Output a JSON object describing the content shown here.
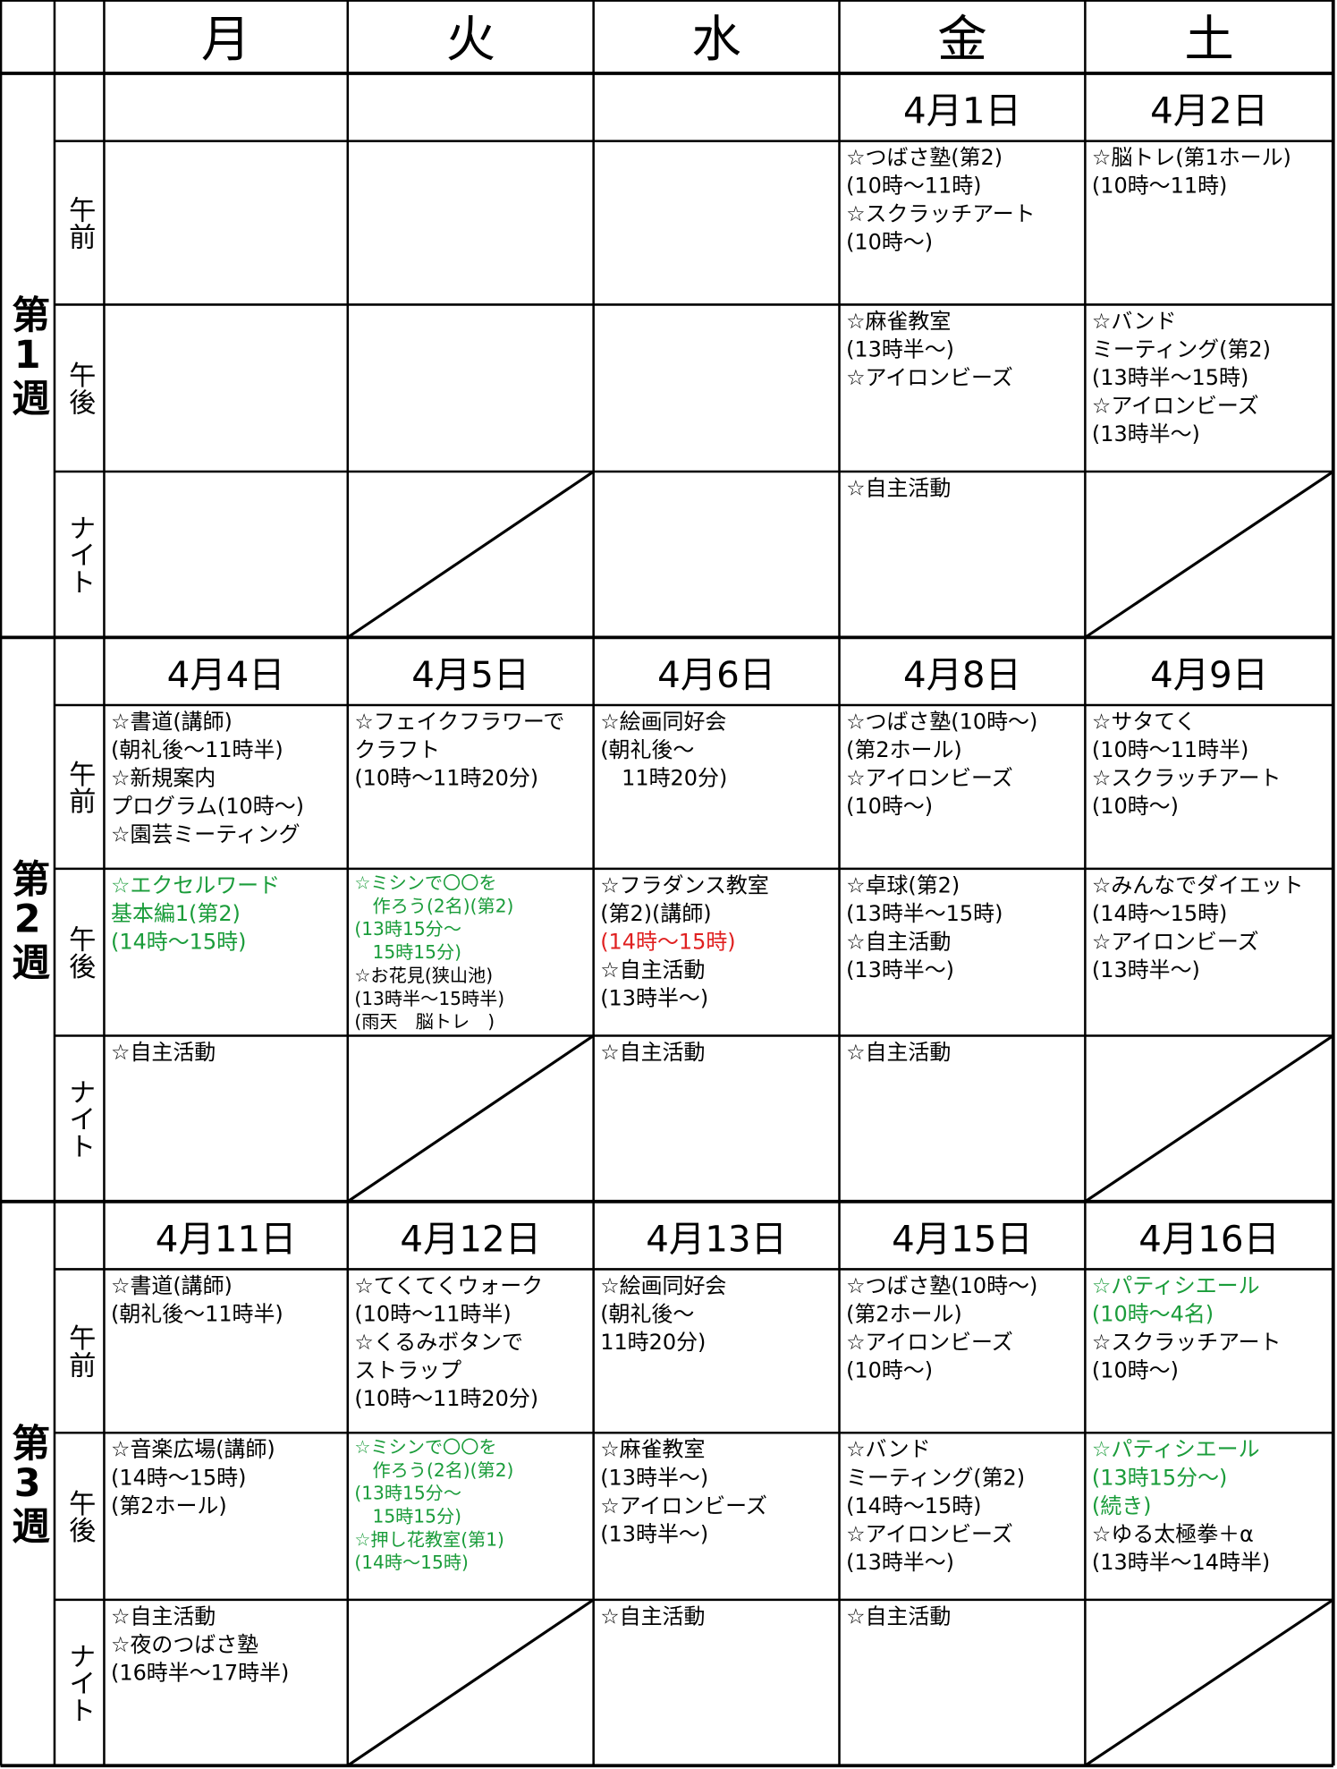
{
  "header": {
    "days": [
      "月",
      "火",
      "水",
      "金",
      "土"
    ]
  },
  "slots": [
    "午前",
    "午後",
    "ナイト"
  ],
  "weeks": [
    {
      "label": "第1週",
      "dates": [
        null,
        null,
        null,
        "4月1日",
        "4月2日"
      ],
      "rows": [
        [
          [],
          [],
          [],
          [
            "☆つばさ塾(第2)",
            "(10時～11時)",
            "☆スクラッチアート",
            "(10時～)"
          ],
          [
            "☆脳トレ(第1ホール)",
            "(10時～11時)"
          ]
        ],
        [
          [],
          [],
          [],
          [
            "☆麻雀教室",
            "(13時半～)",
            "☆アイロンビーズ"
          ],
          [
            "☆バンド",
            "ミーティング(第2)",
            "(13時半～15時)",
            "☆アイロンビーズ",
            "(13時半～)"
          ]
        ],
        [
          [],
          [],
          [],
          [
            "☆自主活動"
          ],
          []
        ]
      ]
    },
    {
      "label": "第2週",
      "dates": [
        "4月4日",
        "4月5日",
        "4月6日",
        "4月8日",
        "4月9日"
      ],
      "rows": [
        [
          [
            "☆書道(講師)",
            "(朝礼後～11時半)",
            "☆新規案内",
            "プログラム(10時～)",
            "☆園芸ミーティング"
          ],
          [
            "☆フェイクフラワーで",
            "クラフト",
            "(10時～11時20分)"
          ],
          [
            "☆絵画同好会",
            "(朝礼後～",
            "　11時20分)"
          ],
          [
            "☆つばさ塾(10時～)",
            "(第2ホール)",
            "☆アイロンビーズ",
            "(10時～)"
          ],
          [
            "☆サタてく",
            "(10時～11時半)",
            "☆スクラッチアート",
            "(10時～)"
          ]
        ],
        [
          [
            {
              "text": "☆エクセルワード",
              "color": "#1a9c3a"
            },
            {
              "text": "基本編1(第2)",
              "color": "#1a9c3a"
            },
            {
              "text": "(14時～15時)",
              "color": "#1a9c3a"
            }
          ],
          [
            {
              "text": "☆ミシンで〇〇を",
              "color": "#1a9c3a"
            },
            {
              "text": "　作ろう(2名)(第2)",
              "color": "#1a9c3a"
            },
            {
              "text": "(13時15分～",
              "color": "#1a9c3a"
            },
            {
              "text": "　15時15分)",
              "color": "#1a9c3a"
            },
            "☆お花見(狭山池)",
            "(13時半～15時半)",
            "(雨天　脳トレ　)"
          ],
          [
            "☆フラダンス教室",
            "(第2)(講師)",
            {
              "text": "(14時～15時)",
              "color": "#e02020"
            },
            "☆自主活動",
            "(13時半～)"
          ],
          [
            "☆卓球(第2)",
            "(13時半～15時)",
            "☆自主活動",
            "(13時半～)"
          ],
          [
            "☆みんなでダイエット",
            "(14時～15時)",
            "☆アイロンビーズ",
            "(13時半～)"
          ]
        ],
        [
          [
            "☆自主活動"
          ],
          [],
          [
            "☆自主活動"
          ],
          [
            "☆自主活動"
          ],
          []
        ]
      ]
    },
    {
      "label": "第3週",
      "dates": [
        "4月11日",
        "4月12日",
        "4月13日",
        "4月15日",
        "4月16日"
      ],
      "rows": [
        [
          [
            "☆書道(講師)",
            "(朝礼後～11時半)"
          ],
          [
            "☆てくてくウォーク",
            "(10時～11時半)",
            "☆くるみボタンで",
            "ストラップ",
            "(10時～11時20分)"
          ],
          [
            "☆絵画同好会",
            "(朝礼後～",
            "11時20分)"
          ],
          [
            "☆つばさ塾(10時～)",
            "(第2ホール)",
            "☆アイロンビーズ",
            "(10時～)"
          ],
          [
            {
              "text": "☆パティシエール",
              "color": "#1a9c3a"
            },
            {
              "text": "(10時～4名)",
              "color": "#1a9c3a"
            },
            "☆スクラッチアート",
            "(10時～)"
          ]
        ],
        [
          [
            "☆音楽広場(講師)",
            "(14時～15時)",
            "(第2ホール)"
          ],
          [
            {
              "text": "☆ミシンで〇〇を",
              "color": "#1a9c3a"
            },
            {
              "text": "　作ろう(2名)(第2)",
              "color": "#1a9c3a"
            },
            {
              "text": "(13時15分～",
              "color": "#1a9c3a"
            },
            {
              "text": "　15時15分)",
              "color": "#1a9c3a"
            },
            {
              "text": "☆押し花教室(第1)",
              "color": "#1a9c3a"
            },
            {
              "text": "(14時～15時)",
              "color": "#1a9c3a"
            }
          ],
          [
            "☆麻雀教室",
            "(13時半～)",
            "☆アイロンビーズ",
            "(13時半～)"
          ],
          [
            "☆バンド",
            "ミーティング(第2)",
            "(14時～15時)",
            "☆アイロンビーズ",
            "(13時半～)"
          ],
          [
            {
              "text": "☆パティシエール",
              "color": "#1a9c3a"
            },
            {
              "text": "(13時15分～)",
              "color": "#1a9c3a"
            },
            {
              "text": "(続き)",
              "color": "#1a9c3a"
            },
            "☆ゆる太極拳＋α",
            "(13時半～14時半)"
          ]
        ],
        [
          [
            "☆自主活動",
            "☆夜のつばさ塾",
            "(16時半～17時半)"
          ],
          [],
          [
            "☆自主活動"
          ],
          [
            "☆自主活動"
          ],
          []
        ]
      ]
    }
  ]
}
